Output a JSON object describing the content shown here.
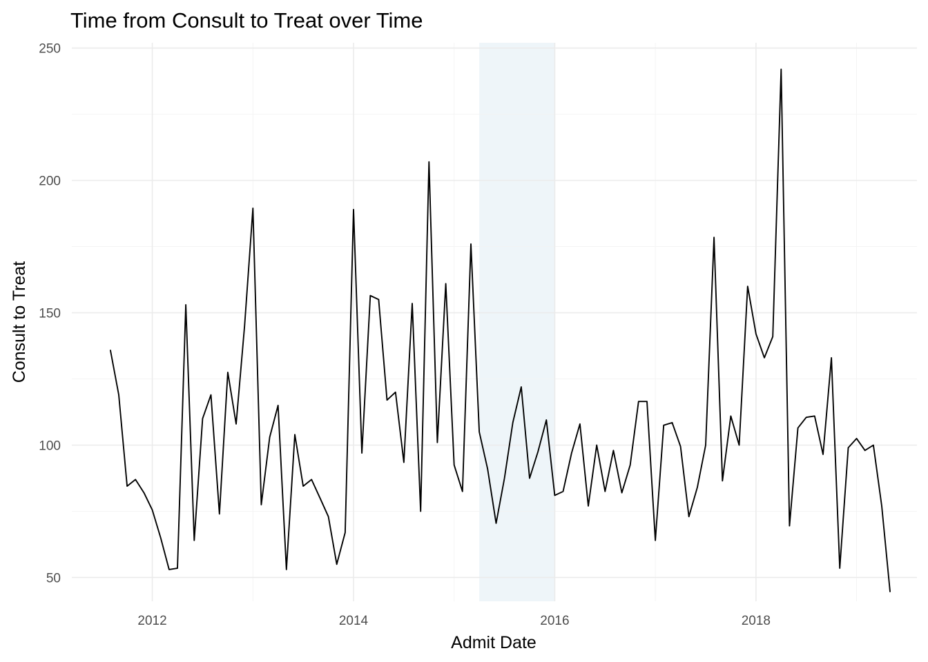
{
  "chart_data": {
    "type": "line",
    "title": "Time from Consult to Treat over Time",
    "xlabel": "Admit Date",
    "ylabel": "Consult to Treat",
    "xlim": [
      2011.2,
      2019.6
    ],
    "ylim": [
      41,
      252
    ],
    "x_ticks": [
      2012,
      2014,
      2016,
      2018
    ],
    "x_tick_labels": [
      "2012",
      "2014",
      "2016",
      "2018"
    ],
    "x_minor_ticks": [
      2013,
      2015,
      2017,
      2019
    ],
    "y_ticks": [
      50,
      100,
      150,
      200,
      250
    ],
    "y_tick_labels": [
      "50",
      "100",
      "150",
      "200",
      "250"
    ],
    "y_minor_ticks": [
      75,
      125,
      175,
      225
    ],
    "grid": true,
    "highlight_band": {
      "x_start": 2015.25,
      "x_end": 2016.0,
      "color": "#eef5f9"
    },
    "line_color": "#000000",
    "series": [
      {
        "name": "Consult to Treat",
        "x": [
          2011.583,
          2011.667,
          2011.75,
          2011.833,
          2011.917,
          2012.0,
          2012.083,
          2012.167,
          2012.25,
          2012.333,
          2012.417,
          2012.5,
          2012.583,
          2012.667,
          2012.75,
          2012.833,
          2012.917,
          2013.0,
          2013.083,
          2013.167,
          2013.25,
          2013.333,
          2013.417,
          2013.5,
          2013.583,
          2013.667,
          2013.75,
          2013.833,
          2013.917,
          2014.0,
          2014.083,
          2014.167,
          2014.25,
          2014.333,
          2014.417,
          2014.5,
          2014.583,
          2014.667,
          2014.75,
          2014.833,
          2014.917,
          2015.0,
          2015.083,
          2015.167,
          2015.25,
          2015.333,
          2015.417,
          2015.5,
          2015.583,
          2015.667,
          2015.75,
          2015.833,
          2015.917,
          2016.0,
          2016.083,
          2016.167,
          2016.25,
          2016.333,
          2016.417,
          2016.5,
          2016.583,
          2016.667,
          2016.75,
          2016.833,
          2016.917,
          2017.0,
          2017.083,
          2017.167,
          2017.25,
          2017.333,
          2017.417,
          2017.5,
          2017.583,
          2017.667,
          2017.75,
          2017.833,
          2017.917,
          2018.0,
          2018.083,
          2018.167,
          2018.25,
          2018.333,
          2018.417,
          2018.5,
          2018.583,
          2018.667,
          2018.75,
          2018.833,
          2018.917,
          2019.0,
          2019.083,
          2019.167,
          2019.25,
          2019.333
        ],
        "values": [
          136,
          119,
          84.5,
          87,
          82,
          75.5,
          65,
          53,
          53.5,
          153,
          64,
          110,
          119,
          74,
          127.5,
          108,
          145,
          189.5,
          77.5,
          103,
          115,
          53,
          104,
          84.5,
          87,
          80,
          73,
          55,
          67,
          189,
          97,
          156.5,
          155,
          117,
          120,
          93.5,
          153.5,
          75,
          207,
          101,
          161,
          92.5,
          82.5,
          176,
          105,
          91,
          70.5,
          87.5,
          108.5,
          122,
          87.5,
          97.5,
          109.5,
          81,
          82.5,
          97,
          108,
          77,
          100,
          82.5,
          98,
          82,
          92.5,
          116.5,
          116.5,
          64,
          107.5,
          108.5,
          99.5,
          73,
          84,
          100,
          178.5,
          86.5,
          111,
          100,
          160,
          142,
          133,
          141,
          242,
          69.5,
          106.5,
          110.5,
          111,
          96.5,
          133,
          53.5,
          99,
          102.5,
          98,
          100,
          77,
          44.5
        ]
      }
    ]
  }
}
